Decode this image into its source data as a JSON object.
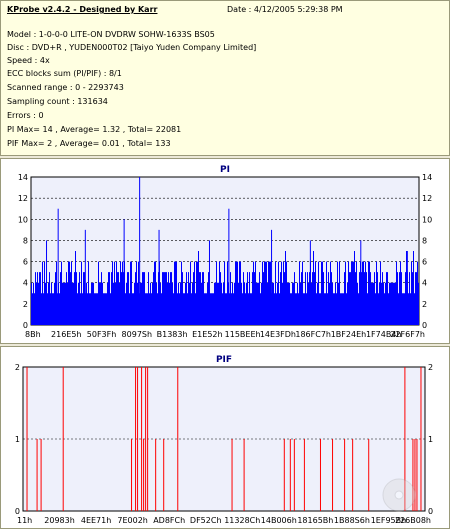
{
  "header": {
    "app_title": "KProbe v2.4.2 - Designed by Karr",
    "date": "Date : 4/12/2005 5:29:38 PM",
    "lines": [
      "Model : 1-0-0-0 LITE-ON DVDRW SOHW-1633S BS05",
      "Disc : DVD+R , YUDEN000T02 [Taiyo Yuden Company Limited]",
      "Speed : 4x",
      "ECC blocks sum (PI/PIF) : 8/1",
      "Scanned range : 0 - 2293743",
      "Sampling count : 131634",
      "Errors : 0",
      "PI Max= 14 , Average= 1.32 , Total= 22081",
      "PIF Max= 2 , Average= 0.01 , Total= 133"
    ]
  },
  "colors": {
    "pi": "#0000ff",
    "pif": "#ff0000",
    "plot_bg": "#eef0fb",
    "grid": "#000000"
  },
  "chart_data": [
    {
      "type": "bar",
      "title": "PI",
      "ylim": [
        0,
        14
      ],
      "yticks": [
        0,
        2,
        4,
        6,
        8,
        10,
        12,
        14
      ],
      "x_tick_labels": [
        "8Bh",
        "216E5h",
        "50F3Fh",
        "8097Sh",
        "B1383h",
        "E1E52h",
        "115BEEh",
        "14E3FDh",
        "186FC7h",
        "1BF24Eh",
        "1F74B4h",
        "22F6F7h"
      ],
      "baseline_range": [
        3,
        6
      ],
      "peaks": [
        {
          "x": 0.04,
          "value": 8
        },
        {
          "x": 0.07,
          "value": 11
        },
        {
          "x": 0.14,
          "value": 9
        },
        {
          "x": 0.24,
          "value": 10
        },
        {
          "x": 0.28,
          "value": 14
        },
        {
          "x": 0.33,
          "value": 9
        },
        {
          "x": 0.46,
          "value": 8
        },
        {
          "x": 0.51,
          "value": 11
        },
        {
          "x": 0.62,
          "value": 9
        },
        {
          "x": 0.72,
          "value": 8
        },
        {
          "x": 0.85,
          "value": 8
        },
        {
          "x": 0.97,
          "value": 7
        }
      ],
      "grid": true
    },
    {
      "type": "bar",
      "title": "PIF",
      "ylim": [
        0,
        2
      ],
      "yticks": [
        0,
        1,
        2
      ],
      "x_tick_labels": [
        "11h",
        "20983h",
        "4EE71h",
        "7E002h",
        "AD8FCh",
        "DF52Ch",
        "11328Ch",
        "14B006h",
        "18165Bh",
        "1B88S6h",
        "1EF95Bh",
        "226B08h"
      ],
      "spikes": [
        {
          "x": 0.01,
          "value": 2
        },
        {
          "x": 0.035,
          "value": 1
        },
        {
          "x": 0.045,
          "value": 1
        },
        {
          "x": 0.1,
          "value": 2
        },
        {
          "x": 0.27,
          "value": 1
        },
        {
          "x": 0.28,
          "value": 2
        },
        {
          "x": 0.285,
          "value": 2
        },
        {
          "x": 0.295,
          "value": 2
        },
        {
          "x": 0.3,
          "value": 1
        },
        {
          "x": 0.305,
          "value": 2
        },
        {
          "x": 0.31,
          "value": 2
        },
        {
          "x": 0.33,
          "value": 1
        },
        {
          "x": 0.35,
          "value": 1
        },
        {
          "x": 0.385,
          "value": 2
        },
        {
          "x": 0.52,
          "value": 1
        },
        {
          "x": 0.55,
          "value": 1
        },
        {
          "x": 0.65,
          "value": 1
        },
        {
          "x": 0.665,
          "value": 1
        },
        {
          "x": 0.675,
          "value": 1
        },
        {
          "x": 0.7,
          "value": 1
        },
        {
          "x": 0.74,
          "value": 1
        },
        {
          "x": 0.77,
          "value": 1
        },
        {
          "x": 0.8,
          "value": 1
        },
        {
          "x": 0.82,
          "value": 1
        },
        {
          "x": 0.86,
          "value": 1
        },
        {
          "x": 0.95,
          "value": 2
        },
        {
          "x": 0.97,
          "value": 1
        },
        {
          "x": 0.975,
          "value": 1
        },
        {
          "x": 0.98,
          "value": 1
        },
        {
          "x": 0.99,
          "value": 2
        }
      ],
      "grid": true
    }
  ]
}
